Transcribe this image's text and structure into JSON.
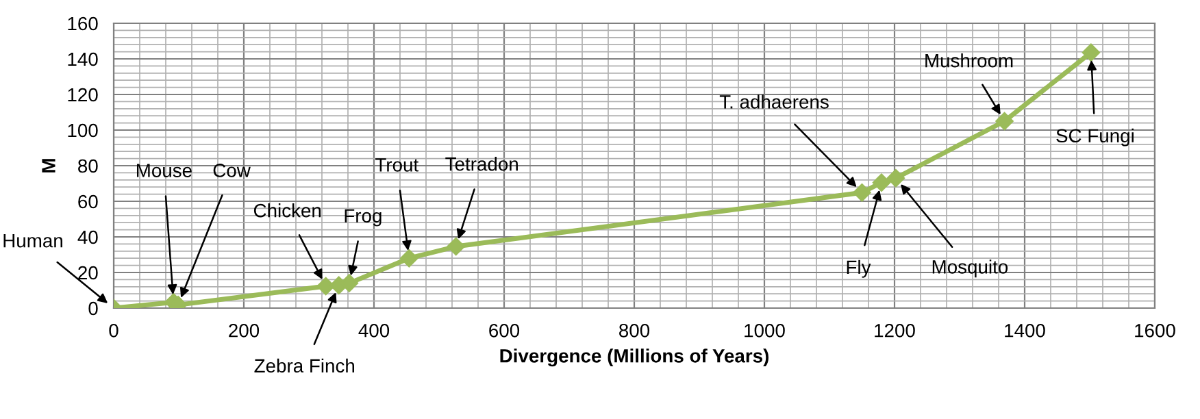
{
  "chart_data": {
    "type": "line",
    "xlabel": "Divergence (Millions of Years)",
    "ylabel": "M",
    "x": [
      0,
      92,
      99,
      326,
      346,
      362,
      454,
      526,
      1150,
      1180,
      1202,
      1369,
      1502
    ],
    "series": [
      {
        "color": "#9bbb59",
        "values": [
          0,
          3.3,
          1.8,
          12.3,
          12.8,
          14,
          28,
          34.6,
          64.9,
          70.5,
          73,
          105,
          143.6
        ]
      }
    ],
    "xlim": [
      0,
      1600
    ],
    "xticks": [
      0,
      200,
      400,
      600,
      800,
      1000,
      1200,
      1400,
      1600
    ],
    "ylim": [
      0,
      160
    ],
    "yticks": [
      0,
      20,
      40,
      60,
      80,
      100,
      120,
      140,
      160
    ],
    "grid": true,
    "marker": "diamond",
    "line_style": "solid",
    "annotations": [
      {
        "text": "Human",
        "x": 0,
        "y": 0
      },
      {
        "text": "Mouse",
        "x": 92,
        "y": 3.3
      },
      {
        "text": "Cow",
        "x": 99,
        "y": 1.8
      },
      {
        "text": "Chicken",
        "x": 326,
        "y": 12.3
      },
      {
        "text": "Zebra Finch",
        "x": 346,
        "y": 12.8
      },
      {
        "text": "Frog",
        "x": 362,
        "y": 14
      },
      {
        "text": "Trout",
        "x": 454,
        "y": 28
      },
      {
        "text": "Tetradon",
        "x": 526,
        "y": 34.6
      },
      {
        "text": "T. adhaerens",
        "x": 1150,
        "y": 64.9
      },
      {
        "text": "Fly",
        "x": 1180,
        "y": 70.5
      },
      {
        "text": "Mosquito",
        "x": 1202,
        "y": 73
      },
      {
        "text": "Mushroom",
        "x": 1369,
        "y": 105
      },
      {
        "text": "SC Fungi",
        "x": 1502,
        "y": 143.6
      }
    ]
  }
}
